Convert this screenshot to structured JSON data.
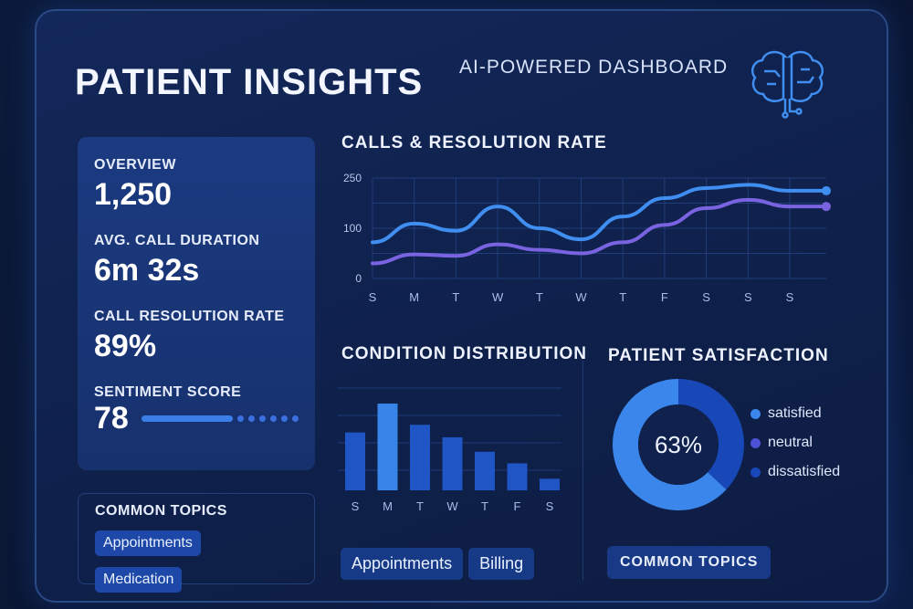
{
  "header": {
    "title": "PATIENT INSIGHTS",
    "subtitle": "AI-POWERED DASHBOARD",
    "logo_icon": "brain-circuit-icon"
  },
  "overview": {
    "label": "OVERVIEW",
    "value": "1,250",
    "avg_call_label": "AVG. CALL DURATION",
    "avg_call_value": "6m 32s",
    "resolution_label": "CALL RESOLUTION RATE",
    "resolution_value": "89%",
    "sentiment_label": "SENTIMENT SCORE",
    "sentiment_value": "78",
    "sentiment_level": 78
  },
  "common_topics_left": {
    "title": "COMMON TOPICS",
    "chips": [
      "Appointments",
      "Medication"
    ]
  },
  "condition_chips": [
    "Appointments",
    "Billing"
  ],
  "common_topics_button": "COMMON TOPICS",
  "colors": {
    "line1": "#3f8ef0",
    "line2": "#7a63e0",
    "bar": "#1f55c4",
    "bar_highlight": "#3785e8",
    "satisfied": "#3a86ea",
    "neutral": "#4b52d6",
    "dissatisfied": "#1848b8"
  },
  "chart_data": [
    {
      "type": "line",
      "title": "CALLS & RESOLUTION RATE",
      "categories": [
        "S",
        "M",
        "T",
        "W",
        "T",
        "W",
        "T",
        "F",
        "S",
        "S",
        "S"
      ],
      "yticks": [
        0,
        100,
        250
      ],
      "ylim": [
        0,
        250
      ],
      "grid": true,
      "series": [
        {
          "values": [
            72,
            114,
            95,
            165,
            100,
            78,
            135,
            190,
            220,
            230,
            212
          ]
        },
        {
          "values": [
            30,
            48,
            45,
            68,
            57,
            50,
            72,
            110,
            160,
            185,
            165
          ]
        }
      ]
    },
    {
      "type": "bar",
      "title": "CONDITION DISTRIBUTION",
      "categories": [
        "S",
        "M",
        "T",
        "W",
        "T",
        "F",
        "S"
      ],
      "values": [
        60,
        90,
        68,
        55,
        40,
        28,
        12
      ],
      "highlight_index": 1
    },
    {
      "type": "pie",
      "title": "PATIENT SATISFACTION",
      "center_label": "63%",
      "labels": [
        "satisfied",
        "neutral",
        "dissatisfied"
      ],
      "values": [
        63,
        0,
        37
      ],
      "legend": "right"
    }
  ]
}
